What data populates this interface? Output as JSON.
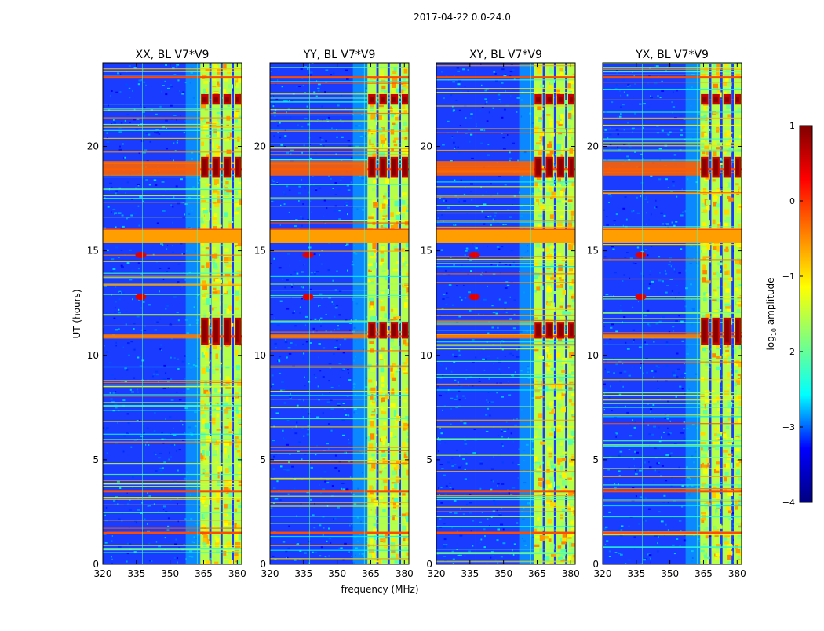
{
  "figure": {
    "title": "2017-04-22 0.0-24.0",
    "xlabel": "frequency (MHz)",
    "ylabel": "UT (hours)"
  },
  "colorbar": {
    "label_prefix": "log",
    "label_sub": "10",
    "label_suffix": " amplitude",
    "ticks": [
      1,
      0,
      -1,
      -2,
      -3,
      -4
    ],
    "tick_labels": [
      "1",
      "0",
      "−1",
      "−2",
      "−3",
      "−4"
    ],
    "range": [
      -4,
      1
    ],
    "colormap": "jet",
    "stops": [
      "#00007f",
      "#0000ff",
      "#00ffff",
      "#7fff7f",
      "#ffff00",
      "#ff7f00",
      "#ff0000",
      "#7f0000"
    ]
  },
  "chart_data": [
    {
      "type": "heatmap",
      "title": "XX, BL V7*V9",
      "xlabel": "frequency (MHz)",
      "ylabel": "UT (hours)",
      "xlim": [
        320,
        382
      ],
      "ylim": [
        0,
        24
      ],
      "xticks": [
        320,
        335,
        350,
        365,
        380
      ],
      "yticks": [
        0,
        5,
        10,
        15,
        20
      ],
      "strong_rfi_bands_mhz": [
        [
          363.5,
          367.5
        ],
        [
          368.5,
          372.5
        ],
        [
          373.5,
          377.5
        ],
        [
          378.5,
          382
        ]
      ],
      "bright_hours": [
        [
          18.5,
          19.5
        ],
        [
          10.5,
          11.8
        ],
        [
          22,
          22.5
        ]
      ],
      "broadband_rfi_hours": [
        15.5,
        16.0,
        18.9,
        10.9,
        3.5,
        1.5,
        23.3
      ]
    },
    {
      "type": "heatmap",
      "title": "YY, BL V7*V9",
      "xlabel": "frequency (MHz)",
      "ylabel": "UT (hours)",
      "xlim": [
        320,
        382
      ],
      "ylim": [
        0,
        24
      ],
      "xticks": [
        320,
        335,
        350,
        365,
        380
      ],
      "yticks": [
        0,
        5,
        10,
        15,
        20
      ],
      "strong_rfi_bands_mhz": [
        [
          363.5,
          367.5
        ],
        [
          368.5,
          372.5
        ],
        [
          373.5,
          377.5
        ],
        [
          378.5,
          382
        ]
      ],
      "bright_hours": [
        [
          18.5,
          19.5
        ],
        [
          10.8,
          11.6
        ],
        [
          22,
          22.5
        ]
      ],
      "broadband_rfi_hours": [
        15.5,
        16.0,
        18.9,
        10.9,
        3.5,
        1.5,
        23.3
      ]
    },
    {
      "type": "heatmap",
      "title": "XY, BL V7*V9",
      "xlabel": "frequency (MHz)",
      "ylabel": "UT (hours)",
      "xlim": [
        320,
        382
      ],
      "ylim": [
        0,
        24
      ],
      "xticks": [
        320,
        335,
        350,
        365,
        380
      ],
      "yticks": [
        0,
        5,
        10,
        15,
        20
      ],
      "strong_rfi_bands_mhz": [
        [
          363.5,
          367.5
        ],
        [
          368.5,
          372.5
        ],
        [
          373.5,
          377.5
        ],
        [
          378.5,
          382
        ]
      ],
      "bright_hours": [
        [
          18.5,
          19.5
        ],
        [
          10.8,
          11.6
        ],
        [
          22,
          22.5
        ]
      ],
      "broadband_rfi_hours": [
        15.5,
        16.0,
        18.9,
        10.9,
        3.5,
        1.5,
        23.3
      ]
    },
    {
      "type": "heatmap",
      "title": "YX, BL V7*V9",
      "xlabel": "frequency (MHz)",
      "ylabel": "UT (hours)",
      "xlim": [
        320,
        382
      ],
      "ylim": [
        0,
        24
      ],
      "xticks": [
        320,
        335,
        350,
        365,
        380
      ],
      "yticks": [
        0,
        5,
        10,
        15,
        20
      ],
      "strong_rfi_bands_mhz": [
        [
          363.5,
          367.5
        ],
        [
          368.5,
          372.5
        ],
        [
          373.5,
          377.5
        ],
        [
          378.5,
          382
        ]
      ],
      "bright_hours": [
        [
          18.5,
          19.5
        ],
        [
          10.5,
          11.8
        ],
        [
          22,
          22.5
        ]
      ],
      "broadband_rfi_hours": [
        15.5,
        16.0,
        18.9,
        10.9,
        3.5,
        1.5,
        23.3
      ]
    }
  ]
}
